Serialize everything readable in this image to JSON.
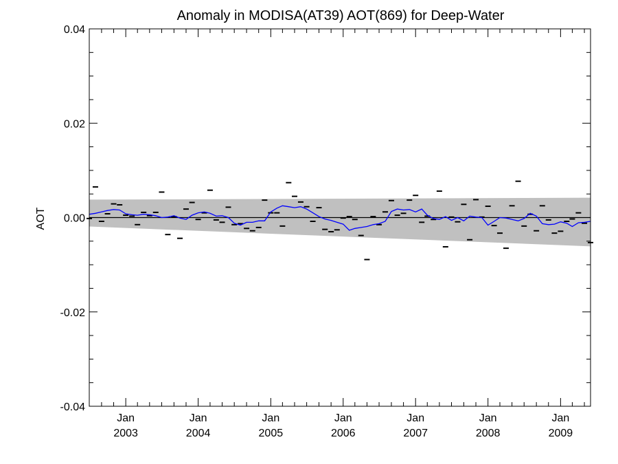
{
  "chart_data": {
    "type": "line",
    "title": "Anomaly in MODISA(AT39) AOT(869) for Deep-Water",
    "xlabel": "",
    "ylabel": "AOT",
    "ylim": [
      -0.04,
      0.04
    ],
    "yticks": [
      {
        "value": 0.04,
        "label": "0.04"
      },
      {
        "value": 0.02,
        "label": "0.02"
      },
      {
        "value": 0.0,
        "label": "0.00"
      },
      {
        "value": -0.02,
        "label": "-0.02"
      },
      {
        "value": -0.04,
        "label": "-0.04"
      }
    ],
    "xlim": [
      "2002-07-01",
      "2009-06-01"
    ],
    "xticks": [
      {
        "date": "2003-01-01",
        "month": "Jan",
        "year": "2003"
      },
      {
        "date": "2004-01-01",
        "month": "Jan",
        "year": "2004"
      },
      {
        "date": "2005-01-01",
        "month": "Jan",
        "year": "2005"
      },
      {
        "date": "2006-01-01",
        "month": "Jan",
        "year": "2006"
      },
      {
        "date": "2007-01-01",
        "month": "Jan",
        "year": "2007"
      },
      {
        "date": "2008-01-01",
        "month": "Jan",
        "year": "2008"
      },
      {
        "date": "2009-01-01",
        "month": "Jan",
        "year": "2009"
      }
    ],
    "zero_line": 0.0,
    "band": {
      "color": "#c0c0c0",
      "start": {
        "date": "2002-07-01",
        "upper": 0.0038,
        "lower": -0.0019
      },
      "end": {
        "date": "2009-06-01",
        "upper": 0.0042,
        "lower": -0.0061
      }
    },
    "colors": {
      "line": "#0000ff",
      "markers": "#000000"
    },
    "series": [
      {
        "kind": "monthly-anomaly-markers",
        "points": [
          [
            "2002-07-01",
            -0.0002
          ],
          [
            "2002-08-01",
            0.0065
          ],
          [
            "2002-09-01",
            -0.0008
          ],
          [
            "2002-10-01",
            0.0008
          ],
          [
            "2002-11-01",
            0.0029
          ],
          [
            "2002-12-01",
            0.0027
          ],
          [
            "2003-01-01",
            0.0005
          ],
          [
            "2003-02-01",
            0.0003
          ],
          [
            "2003-03-01",
            -0.0015
          ],
          [
            "2003-04-01",
            0.0011
          ],
          [
            "2003-05-01",
            0.0004
          ],
          [
            "2003-06-01",
            0.0011
          ],
          [
            "2003-07-01",
            0.0054
          ],
          [
            "2003-08-01",
            -0.0036
          ],
          [
            "2003-09-01",
            0.0002
          ],
          [
            "2003-10-01",
            -0.0044
          ],
          [
            "2003-11-01",
            0.0018
          ],
          [
            "2003-12-01",
            0.0032
          ],
          [
            "2004-01-01",
            -0.0004
          ],
          [
            "2004-02-01",
            0.001
          ],
          [
            "2004-03-01",
            0.0058
          ],
          [
            "2004-04-01",
            -0.0005
          ],
          [
            "2004-05-01",
            -0.001
          ],
          [
            "2004-06-01",
            0.0022
          ],
          [
            "2004-07-01",
            -0.0015
          ],
          [
            "2004-08-01",
            -0.0013
          ],
          [
            "2004-09-01",
            -0.0023
          ],
          [
            "2004-10-01",
            -0.0028
          ],
          [
            "2004-11-01",
            -0.0021
          ],
          [
            "2004-12-01",
            0.0037
          ],
          [
            "2005-01-01",
            0.001
          ],
          [
            "2005-02-01",
            0.001
          ],
          [
            "2005-03-01",
            -0.0018
          ],
          [
            "2005-04-01",
            0.0074
          ],
          [
            "2005-05-01",
            0.0045
          ],
          [
            "2005-06-01",
            0.0033
          ],
          [
            "2005-07-01",
            0.0023
          ],
          [
            "2005-08-01",
            -0.0008
          ],
          [
            "2005-09-01",
            0.0021
          ],
          [
            "2005-10-01",
            -0.0025
          ],
          [
            "2005-11-01",
            -0.003
          ],
          [
            "2005-12-01",
            -0.0026
          ],
          [
            "2006-01-01",
            -0.0001
          ],
          [
            "2006-02-01",
            0.0002
          ],
          [
            "2006-03-01",
            -0.0004
          ],
          [
            "2006-04-01",
            -0.0038
          ],
          [
            "2006-05-01",
            -0.0089
          ],
          [
            "2006-06-01",
            0.0002
          ],
          [
            "2006-07-01",
            -0.0015
          ],
          [
            "2006-08-01",
            0.0012
          ],
          [
            "2006-09-01",
            0.0036
          ],
          [
            "2006-10-01",
            0.0005
          ],
          [
            "2006-11-01",
            0.0009
          ],
          [
            "2006-12-01",
            0.0037
          ],
          [
            "2007-01-01",
            0.0047
          ],
          [
            "2007-02-01",
            -0.001
          ],
          [
            "2007-03-01",
            0.0003
          ],
          [
            "2007-04-01",
            -0.0004
          ],
          [
            "2007-05-01",
            0.0056
          ],
          [
            "2007-06-01",
            -0.0062
          ],
          [
            "2007-07-01",
            0.0001
          ],
          [
            "2007-08-01",
            -0.0009
          ],
          [
            "2007-09-01",
            0.0028
          ],
          [
            "2007-10-01",
            -0.0047
          ],
          [
            "2007-11-01",
            0.0038
          ],
          [
            "2007-12-01",
            0.0001
          ],
          [
            "2008-01-01",
            0.0024
          ],
          [
            "2008-02-01",
            -0.0017
          ],
          [
            "2008-03-01",
            -0.0033
          ],
          [
            "2008-04-01",
            -0.0065
          ],
          [
            "2008-05-01",
            0.0025
          ],
          [
            "2008-06-01",
            0.0077
          ],
          [
            "2008-07-01",
            -0.0018
          ],
          [
            "2008-08-01",
            0.0007
          ],
          [
            "2008-09-01",
            -0.0028
          ],
          [
            "2008-10-01",
            0.0025
          ],
          [
            "2008-11-01",
            -0.0005
          ],
          [
            "2008-12-01",
            -0.0033
          ],
          [
            "2009-01-01",
            -0.0029
          ],
          [
            "2009-02-01",
            -0.0008
          ],
          [
            "2009-03-01",
            -0.0003
          ],
          [
            "2009-04-01",
            0.001
          ],
          [
            "2009-05-01",
            -0.0012
          ],
          [
            "2009-06-01",
            -0.0053
          ]
        ]
      },
      {
        "kind": "smoothed-line",
        "points": [
          [
            "2002-07-01",
            0.0007
          ],
          [
            "2002-08-01",
            0.0009
          ],
          [
            "2002-09-01",
            0.0012
          ],
          [
            "2002-10-01",
            0.0015
          ],
          [
            "2002-11-01",
            0.0017
          ],
          [
            "2002-12-01",
            0.0016
          ],
          [
            "2003-01-01",
            0.0008
          ],
          [
            "2003-02-01",
            0.0006
          ],
          [
            "2003-03-01",
            0.0005
          ],
          [
            "2003-04-01",
            0.0007
          ],
          [
            "2003-05-01",
            0.0006
          ],
          [
            "2003-06-01",
            0.0004
          ],
          [
            "2003-07-01",
            0.0
          ],
          [
            "2003-08-01",
            0.0001
          ],
          [
            "2003-09-01",
            0.0004
          ],
          [
            "2003-10-01",
            -0.0001
          ],
          [
            "2003-11-01",
            -0.0004
          ],
          [
            "2003-12-01",
            0.0005
          ],
          [
            "2004-01-01",
            0.001
          ],
          [
            "2004-02-01",
            0.0012
          ],
          [
            "2004-03-01",
            0.0009
          ],
          [
            "2004-04-01",
            0.0003
          ],
          [
            "2004-05-01",
            0.0004
          ],
          [
            "2004-06-01",
            0.0
          ],
          [
            "2004-07-01",
            -0.0012
          ],
          [
            "2004-08-01",
            -0.0016
          ],
          [
            "2004-09-01",
            -0.001
          ],
          [
            "2004-10-01",
            -0.001
          ],
          [
            "2004-11-01",
            -0.0007
          ],
          [
            "2004-12-01",
            -0.0007
          ],
          [
            "2005-01-01",
            0.0012
          ],
          [
            "2005-02-01",
            0.002
          ],
          [
            "2005-03-01",
            0.0025
          ],
          [
            "2005-04-01",
            0.0023
          ],
          [
            "2005-05-01",
            0.0021
          ],
          [
            "2005-06-01",
            0.0023
          ],
          [
            "2005-07-01",
            0.0018
          ],
          [
            "2005-08-01",
            0.001
          ],
          [
            "2005-09-01",
            0.0002
          ],
          [
            "2005-10-01",
            -0.0003
          ],
          [
            "2005-11-01",
            -0.0006
          ],
          [
            "2005-12-01",
            -0.001
          ],
          [
            "2006-01-01",
            -0.0014
          ],
          [
            "2006-02-01",
            -0.0027
          ],
          [
            "2006-03-01",
            -0.0023
          ],
          [
            "2006-04-01",
            -0.0021
          ],
          [
            "2006-05-01",
            -0.0019
          ],
          [
            "2006-06-01",
            -0.0015
          ],
          [
            "2006-07-01",
            -0.0013
          ],
          [
            "2006-08-01",
            -0.0008
          ],
          [
            "2006-09-01",
            0.0013
          ],
          [
            "2006-10-01",
            0.0018
          ],
          [
            "2006-11-01",
            0.0016
          ],
          [
            "2006-12-01",
            0.0017
          ],
          [
            "2007-01-01",
            0.0012
          ],
          [
            "2007-02-01",
            0.0018
          ],
          [
            "2007-03-01",
            0.0005
          ],
          [
            "2007-04-01",
            -0.0002
          ],
          [
            "2007-05-01",
            -0.0004
          ],
          [
            "2007-06-01",
            0.0002
          ],
          [
            "2007-07-01",
            -0.0006
          ],
          [
            "2007-08-01",
            0.0
          ],
          [
            "2007-09-01",
            -0.0007
          ],
          [
            "2007-10-01",
            0.0003
          ],
          [
            "2007-11-01",
            0.0001
          ],
          [
            "2007-12-01",
            0.0
          ],
          [
            "2008-01-01",
            -0.0016
          ],
          [
            "2008-02-01",
            -0.0008
          ],
          [
            "2008-03-01",
            0.0
          ],
          [
            "2008-04-01",
            -0.0001
          ],
          [
            "2008-05-01",
            -0.0004
          ],
          [
            "2008-06-01",
            -0.0007
          ],
          [
            "2008-07-01",
            -0.0002
          ],
          [
            "2008-08-01",
            0.0009
          ],
          [
            "2008-09-01",
            0.0003
          ],
          [
            "2008-10-01",
            -0.0013
          ],
          [
            "2008-11-01",
            -0.0015
          ],
          [
            "2008-12-01",
            -0.0014
          ],
          [
            "2009-01-01",
            -0.0009
          ],
          [
            "2009-02-01",
            -0.0012
          ],
          [
            "2009-03-01",
            -0.0019
          ],
          [
            "2009-04-01",
            -0.0011
          ],
          [
            "2009-05-01",
            -0.001
          ],
          [
            "2009-06-01",
            -0.0008
          ]
        ]
      }
    ],
    "grid": false,
    "legend": "none"
  }
}
